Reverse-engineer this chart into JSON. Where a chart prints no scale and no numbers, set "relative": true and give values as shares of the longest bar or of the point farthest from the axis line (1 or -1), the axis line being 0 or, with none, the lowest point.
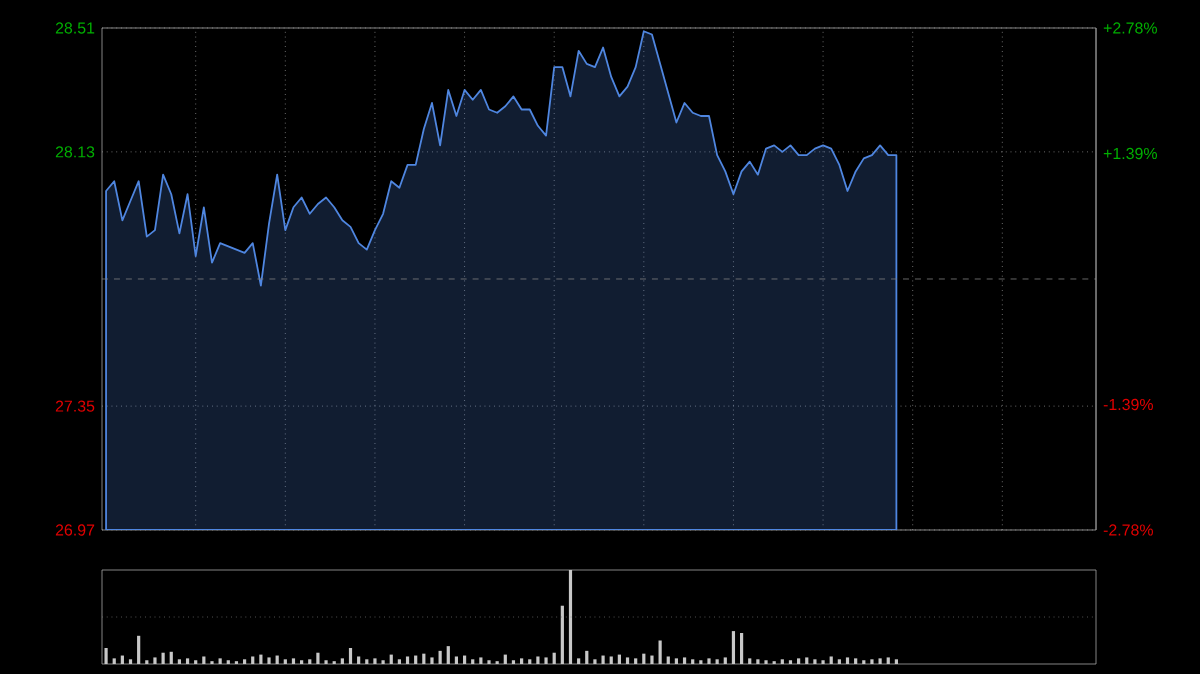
{
  "chart_data": [
    {
      "type": "area",
      "categories": [
        null,
        null,
        null,
        null,
        null,
        null,
        null,
        null,
        null,
        null,
        null,
        null,
        null,
        null,
        null,
        null,
        null,
        null,
        null,
        null,
        null,
        null,
        null,
        null,
        null,
        null,
        null,
        null,
        null,
        null,
        null,
        null,
        null,
        null,
        null,
        null,
        null,
        null,
        null,
        null,
        null,
        null,
        null,
        null,
        null,
        null,
        null,
        null,
        null,
        null,
        null,
        null,
        null,
        null,
        null,
        null,
        null,
        null,
        null,
        null,
        null,
        null,
        null,
        null,
        null,
        null,
        null,
        null,
        null,
        null,
        null,
        null,
        null,
        null,
        null,
        null,
        null,
        null,
        null,
        null,
        null,
        null,
        null,
        null,
        null,
        null,
        null,
        null,
        null,
        null,
        null,
        null,
        null,
        null,
        null,
        null,
        null,
        null,
        null,
        null,
        null,
        null,
        null,
        null,
        null,
        null,
        null,
        null,
        null,
        null,
        null,
        null,
        null,
        null,
        null,
        null,
        null,
        null,
        null,
        null,
        null,
        null
      ],
      "ylim": [
        26.97,
        28.51
      ],
      "yticks": [
        26.97,
        27.35,
        28.13,
        28.51
      ],
      "y2lim": [
        -2.78,
        2.78
      ],
      "y2ticks": [
        {
          "value": -2.78,
          "label": "-2.78%"
        },
        {
          "value": -1.39,
          "label": "-1.39%"
        },
        {
          "value": 1.39,
          "label": "+1.39%"
        },
        {
          "value": 2.78,
          "label": "+2.78%"
        }
      ],
      "grid": true,
      "ref_lines": [
        {
          "axis": "y",
          "value": 27.74,
          "line_style": "dashed",
          "color": "#808080"
        }
      ],
      "series": [
        {
          "color": "#4f86e0",
          "values": [
            28.01,
            28.04,
            27.92,
            27.98,
            28.04,
            27.87,
            27.89,
            28.06,
            28.0,
            27.88,
            28.0,
            27.81,
            27.96,
            27.79,
            27.85,
            27.84,
            27.83,
            27.82,
            27.85,
            27.72,
            27.91,
            28.06,
            27.89,
            27.96,
            27.99,
            27.94,
            27.97,
            27.99,
            27.96,
            27.92,
            27.9,
            27.85,
            27.83,
            27.89,
            27.94,
            28.04,
            28.02,
            28.09,
            28.09,
            28.2,
            28.28,
            28.15,
            28.32,
            28.24,
            28.32,
            28.29,
            28.32,
            28.26,
            28.25,
            28.27,
            28.3,
            28.26,
            28.26,
            28.21,
            28.18,
            28.39,
            28.39,
            28.3,
            28.44,
            28.4,
            28.39,
            28.45,
            28.36,
            28.3,
            28.33,
            28.39,
            28.5,
            28.49,
            28.4,
            28.31,
            28.22,
            28.28,
            28.25,
            28.24,
            28.24,
            28.12,
            28.07,
            28.0,
            28.07,
            28.1,
            28.06,
            28.14,
            28.15,
            28.13,
            28.15,
            28.12,
            28.12,
            28.14,
            28.15,
            28.14,
            28.09,
            28.01,
            28.07,
            28.11,
            28.12,
            28.15,
            28.12,
            28.12,
            null,
            null,
            null,
            null,
            null,
            null,
            null,
            null,
            null,
            null,
            null,
            null,
            null,
            null,
            null,
            null,
            null,
            null,
            null,
            null,
            null,
            null,
            null,
            null
          ]
        }
      ]
    },
    {
      "type": "bar",
      "relative": true,
      "ref_lines": [
        {
          "axis": "y",
          "value": 0.5,
          "line_style": "dotted",
          "color": "#808080"
        }
      ],
      "categories": [
        null,
        null,
        null,
        null,
        null,
        null,
        null,
        null,
        null,
        null,
        null,
        null,
        null,
        null,
        null,
        null,
        null,
        null,
        null,
        null,
        null,
        null,
        null,
        null,
        null,
        null,
        null,
        null,
        null,
        null,
        null,
        null,
        null,
        null,
        null,
        null,
        null,
        null,
        null,
        null,
        null,
        null,
        null,
        null,
        null,
        null,
        null,
        null,
        null,
        null,
        null,
        null,
        null,
        null,
        null,
        null,
        null,
        null,
        null,
        null,
        null,
        null,
        null,
        null,
        null,
        null,
        null,
        null,
        null,
        null,
        null,
        null,
        null,
        null,
        null,
        null,
        null,
        null,
        null,
        null,
        null,
        null,
        null,
        null,
        null,
        null,
        null,
        null,
        null,
        null,
        null,
        null,
        null,
        null,
        null,
        null,
        null,
        null,
        null,
        null,
        null,
        null,
        null,
        null,
        null,
        null,
        null,
        null,
        null,
        null,
        null,
        null,
        null,
        null,
        null,
        null,
        null,
        null,
        null,
        null,
        null,
        null
      ],
      "series": [
        {
          "color": "#c8c8c8",
          "values": [
            0.17,
            0.06,
            0.09,
            0.05,
            0.3,
            0.04,
            0.07,
            0.12,
            0.13,
            0.05,
            0.06,
            0.04,
            0.08,
            0.03,
            0.06,
            0.04,
            0.03,
            0.05,
            0.08,
            0.1,
            0.07,
            0.09,
            0.05,
            0.06,
            0.04,
            0.05,
            0.12,
            0.04,
            0.03,
            0.06,
            0.17,
            0.08,
            0.05,
            0.06,
            0.04,
            0.1,
            0.05,
            0.08,
            0.09,
            0.11,
            0.07,
            0.14,
            0.19,
            0.08,
            0.09,
            0.05,
            0.07,
            0.04,
            0.03,
            0.1,
            0.04,
            0.06,
            0.05,
            0.08,
            0.07,
            0.12,
            0.62,
            1.0,
            0.06,
            0.14,
            0.05,
            0.09,
            0.08,
            0.1,
            0.07,
            0.06,
            0.11,
            0.09,
            0.25,
            0.08,
            0.06,
            0.07,
            0.05,
            0.04,
            0.06,
            0.05,
            0.07,
            0.35,
            0.33,
            0.06,
            0.05,
            0.04,
            0.03,
            0.05,
            0.04,
            0.06,
            0.07,
            0.05,
            0.04,
            0.08,
            0.05,
            0.07,
            0.06,
            0.04,
            0.05,
            0.06,
            0.07,
            0.05,
            null,
            null,
            null,
            null,
            null,
            null,
            null,
            null,
            null,
            null,
            null,
            null,
            null,
            null,
            null,
            null,
            null,
            null,
            null,
            null,
            null,
            null,
            null,
            null
          ]
        }
      ]
    }
  ]
}
